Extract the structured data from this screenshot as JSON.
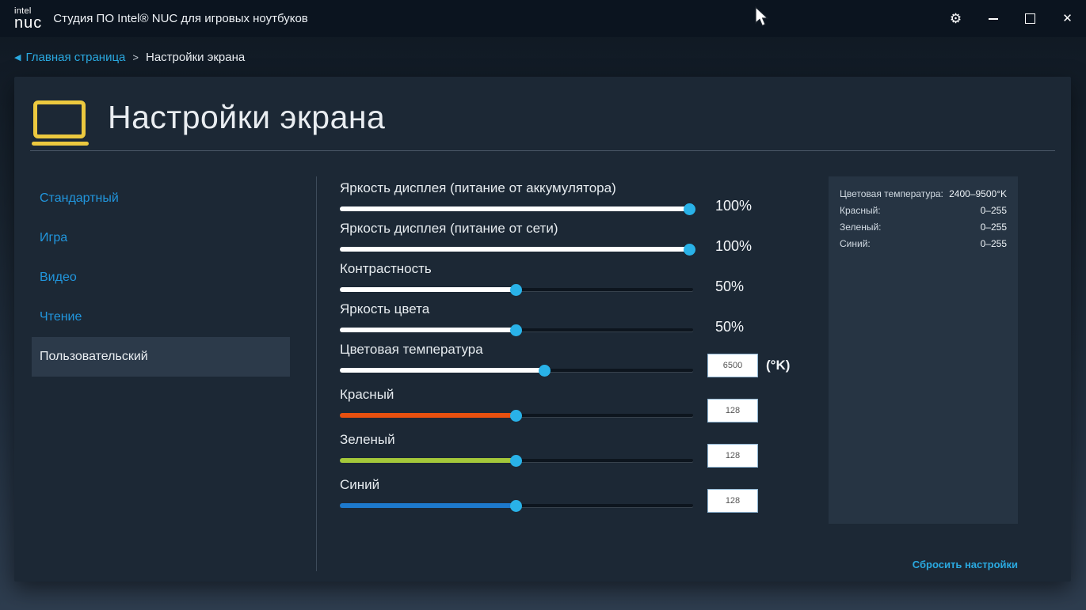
{
  "titlebar": {
    "logo_top": "intel",
    "logo_bottom": "nuc",
    "app_title": "Студия ПО Intel® NUC для игровых ноутбуков",
    "icons": {
      "gear": "⚙",
      "close": "✕"
    }
  },
  "breadcrumb": {
    "back_arrow": "◀",
    "home": "Главная страница",
    "separator": ">",
    "current": "Настройки экрана"
  },
  "page": {
    "title": "Настройки экрана"
  },
  "nav": {
    "items": [
      {
        "label": "Стандартный",
        "selected": false
      },
      {
        "label": "Игра",
        "selected": false
      },
      {
        "label": "Видео",
        "selected": false
      },
      {
        "label": "Чтение",
        "selected": false
      },
      {
        "label": "Пользовательский",
        "selected": true
      }
    ]
  },
  "sliders": [
    {
      "label": "Яркость дисплея (питание от аккумулятора)",
      "fill_percent": 99,
      "fill_color": "#ffffff",
      "value_text": "100%"
    },
    {
      "label": "Яркость дисплея (питание от сети)",
      "fill_percent": 99,
      "fill_color": "#ffffff",
      "value_text": "100%"
    },
    {
      "label": "Контрастность",
      "fill_percent": 50,
      "fill_color": "#ffffff",
      "value_text": "50%"
    },
    {
      "label": "Яркость цвета",
      "fill_percent": 50,
      "fill_color": "#ffffff",
      "value_text": "50%"
    },
    {
      "label": "Цветовая температура",
      "fill_percent": 58,
      "fill_color": "#ffffff",
      "input_value": "6500",
      "unit": "(°K)"
    },
    {
      "label": "Красный",
      "fill_percent": 50,
      "fill_color": "#e8500f",
      "input_value": "128"
    },
    {
      "label": "Зеленый",
      "fill_percent": 50,
      "fill_color": "#a4c83a",
      "input_value": "128"
    },
    {
      "label": "Синий",
      "fill_percent": 50,
      "fill_color": "#1d79cc",
      "input_value": "128"
    }
  ],
  "info_panel": {
    "rows": [
      {
        "label": "Цветовая температура:",
        "value": "2400–9500°K"
      },
      {
        "label": "Красный:",
        "value": "0–255"
      },
      {
        "label": "Зеленый:",
        "value": "0–255"
      },
      {
        "label": "Синий:",
        "value": "0–255"
      }
    ]
  },
  "reset_label": "Сбросить настройки",
  "colors": {
    "accent_blue": "#2aa9e0",
    "slider_thumb": "#29b2e8",
    "red_track": "#e8500f",
    "green_track": "#a4c83a",
    "blue_track": "#1d79cc",
    "laptop_icon_yellow": "#ecc93f"
  }
}
